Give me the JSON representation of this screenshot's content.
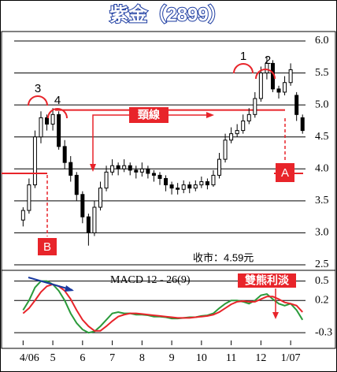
{
  "chart_data": [
    {
      "type": "candlestick",
      "title": "紫金（2899）",
      "x": [
        0,
        1,
        2,
        3,
        4,
        5,
        6,
        7,
        8,
        9,
        10,
        11,
        12,
        13,
        14,
        15,
        16,
        17,
        18,
        19,
        20,
        21,
        22,
        23,
        24,
        25,
        26,
        27,
        28,
        29,
        30,
        31,
        32,
        33,
        34,
        35,
        36,
        37,
        38,
        39,
        40,
        41,
        42,
        43,
        44,
        45,
        46,
        47
      ],
      "open": [
        3.2,
        3.35,
        3.75,
        4.5,
        4.8,
        4.7,
        4.85,
        4.35,
        4.1,
        3.9,
        3.6,
        3.25,
        3.0,
        3.4,
        3.7,
        3.95,
        4.05,
        4.0,
        4.05,
        3.98,
        3.95,
        4.0,
        3.93,
        3.9,
        3.85,
        3.75,
        3.7,
        3.68,
        3.75,
        3.7,
        3.75,
        3.8,
        3.75,
        3.9,
        4.15,
        4.45,
        4.55,
        4.6,
        4.75,
        4.85,
        5.1,
        5.5,
        5.65,
        5.25,
        5.2,
        5.35,
        5.15,
        4.8
      ],
      "high": [
        3.4,
        3.85,
        4.6,
        4.9,
        4.85,
        4.95,
        4.9,
        4.45,
        4.2,
        3.95,
        3.65,
        3.3,
        3.5,
        3.8,
        4.05,
        4.15,
        4.1,
        4.15,
        4.1,
        4.05,
        4.1,
        4.05,
        3.98,
        3.95,
        3.9,
        3.8,
        3.78,
        3.82,
        3.8,
        3.82,
        3.88,
        3.85,
        3.98,
        4.25,
        4.55,
        4.65,
        4.7,
        4.85,
        4.95,
        5.2,
        5.6,
        5.75,
        5.7,
        5.3,
        5.45,
        5.65,
        5.2,
        4.85
      ],
      "low": [
        3.1,
        3.3,
        3.7,
        4.4,
        4.6,
        4.6,
        4.3,
        4.0,
        3.8,
        3.5,
        3.15,
        2.8,
        2.95,
        3.35,
        3.65,
        3.9,
        3.9,
        3.95,
        3.9,
        3.85,
        3.88,
        3.85,
        3.8,
        3.75,
        3.65,
        3.6,
        3.6,
        3.62,
        3.62,
        3.65,
        3.7,
        3.68,
        3.72,
        3.85,
        4.1,
        4.4,
        4.5,
        4.55,
        4.7,
        4.8,
        5.05,
        5.4,
        5.2,
        5.1,
        5.15,
        5.3,
        4.75,
        4.55
      ],
      "close": [
        3.35,
        3.75,
        4.5,
        4.8,
        4.7,
        4.85,
        4.35,
        4.1,
        3.9,
        3.6,
        3.25,
        3.0,
        3.4,
        3.7,
        3.95,
        4.05,
        4.0,
        4.05,
        3.98,
        3.95,
        4.0,
        3.93,
        3.9,
        3.85,
        3.75,
        3.7,
        3.68,
        3.75,
        3.7,
        3.75,
        3.8,
        3.75,
        3.9,
        4.15,
        4.45,
        4.55,
        4.6,
        4.75,
        4.85,
        5.1,
        5.5,
        5.65,
        5.25,
        5.2,
        5.35,
        5.55,
        4.85,
        4.6
      ],
      "color": "#000000",
      "xlim": [
        -1.5,
        47.5
      ],
      "ylim": [
        2.5,
        6.0
      ],
      "yticks": [
        {
          "value": 6.0,
          "label": "6.0"
        },
        5.5,
        {
          "value": 5.0,
          "label": "5.0"
        },
        4.5,
        {
          "value": 4.0,
          "label": "4.0"
        },
        3.5,
        {
          "value": 3.0,
          "label": "3.0"
        },
        2.5
      ],
      "grid": true,
      "neckline": 4.92,
      "neckline_color": "#e8242a",
      "annotations": {
        "peak1": "1",
        "peak2": "2",
        "peak3": "3",
        "peak4": "4",
        "neckline_label": "頸線",
        "target_a": "A",
        "target_b": "B",
        "close_note": "收市：4.59元"
      }
    },
    {
      "type": "line",
      "title": "MACD 12 - 26(9)",
      "annotation": "雙熊利淡",
      "x": [
        0,
        1,
        2,
        3,
        4,
        5,
        6,
        7,
        8,
        9,
        10,
        11,
        12,
        13,
        14,
        15,
        16,
        17,
        18,
        19,
        20,
        21,
        22,
        23,
        24,
        25,
        26,
        27,
        28,
        29,
        30,
        31,
        32,
        33,
        34,
        35,
        36,
        37,
        38,
        39,
        40,
        41,
        42,
        43,
        44,
        45,
        46,
        47
      ],
      "series": [
        {
          "color": "#2a9a3a",
          "values": [
            0.05,
            0.2,
            0.4,
            0.5,
            0.5,
            0.45,
            0.35,
            0.2,
            0.0,
            -0.15,
            -0.25,
            -0.3,
            -0.28,
            -0.2,
            -0.1,
            0.0,
            0.02,
            0.0,
            0.0,
            -0.02,
            -0.02,
            -0.03,
            -0.05,
            -0.05,
            -0.06,
            -0.08,
            -0.08,
            -0.07,
            -0.06,
            -0.06,
            -0.04,
            -0.03,
            0.0,
            0.08,
            0.15,
            0.2,
            0.2,
            0.18,
            0.15,
            0.2,
            0.28,
            0.3,
            0.22,
            0.15,
            0.12,
            0.15,
            0.05,
            -0.1
          ]
        },
        {
          "color": "#e8242a",
          "values": [
            0.0,
            0.08,
            0.2,
            0.33,
            0.42,
            0.45,
            0.42,
            0.35,
            0.22,
            0.05,
            -0.1,
            -0.2,
            -0.27,
            -0.27,
            -0.2,
            -0.12,
            -0.05,
            -0.02,
            0.0,
            0.0,
            -0.01,
            -0.02,
            -0.03,
            -0.04,
            -0.05,
            -0.06,
            -0.07,
            -0.07,
            -0.07,
            -0.06,
            -0.05,
            -0.04,
            -0.02,
            0.02,
            0.08,
            0.14,
            0.18,
            0.19,
            0.18,
            0.18,
            0.22,
            0.26,
            0.26,
            0.22,
            0.17,
            0.15,
            0.12,
            0.02
          ]
        }
      ],
      "xlim": [
        -1.5,
        47.5
      ],
      "ylim": [
        -0.42,
        0.63
      ],
      "yticks": [
        0.5,
        0.2,
        -0.3
      ],
      "xticks": [
        {
          "value": 0,
          "label": "4/06"
        },
        {
          "value": 5,
          "label": "5"
        },
        {
          "value": 10,
          "label": "6"
        },
        {
          "value": 15,
          "label": "7"
        },
        {
          "value": 20,
          "label": "8"
        },
        {
          "value": 25,
          "label": "9"
        },
        {
          "value": 30,
          "label": "10"
        },
        {
          "value": 35,
          "label": "11"
        },
        {
          "value": 40,
          "label": "12"
        },
        {
          "value": 45,
          "label": "1/07"
        }
      ],
      "grid": true
    }
  ]
}
